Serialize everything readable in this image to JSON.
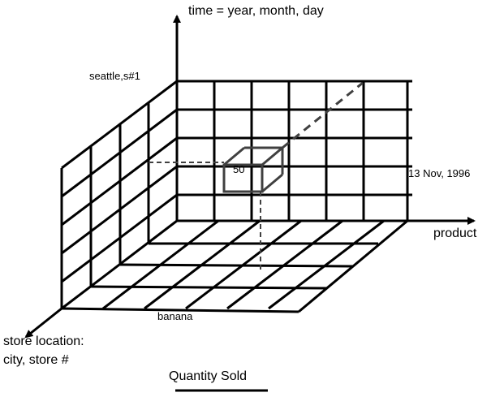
{
  "diagram": {
    "axes": {
      "time": "time = year, month, day",
      "product": "product",
      "location_line1": "store location:",
      "location_line2": "city, store #"
    },
    "labels": {
      "store": "seattle,s#1",
      "date": "13 Nov, 1996",
      "item": "banana",
      "value": "50"
    },
    "measure": "Quantity Sold"
  }
}
